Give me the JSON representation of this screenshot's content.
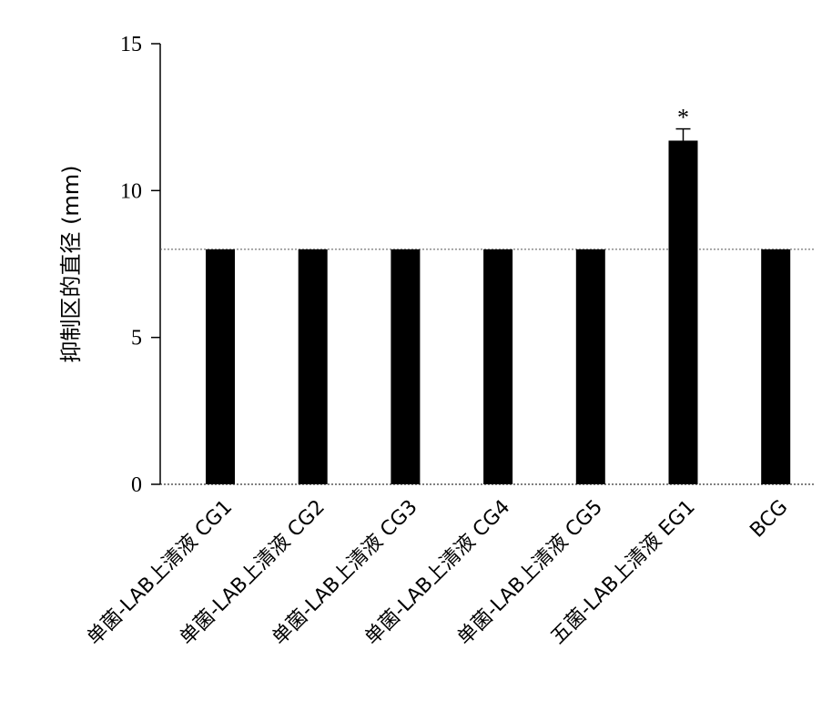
{
  "chart_data": {
    "type": "bar",
    "title": "",
    "xlabel": "",
    "ylabel": "抑制区的直径 (mm)",
    "ylim": [
      0,
      15
    ],
    "yticks": [
      0,
      5,
      10,
      15
    ],
    "categories": [
      "单菌-LAB上清液 CG1",
      "单菌-LAB上清液 CG2",
      "单菌-LAB上清液 CG3",
      "单菌-LAB上清液 CG4",
      "单菌-LAB上清液 CG5",
      "五菌-LAB上清液 EG1",
      "BCG"
    ],
    "values": [
      8,
      8,
      8,
      8,
      8,
      11.7,
      8
    ],
    "errors": [
      0,
      0,
      0,
      0,
      0,
      0.4,
      0
    ],
    "annotations": [
      "",
      "",
      "",
      "",
      "",
      "*",
      ""
    ],
    "reference_line": 8,
    "bar_color": "#000000",
    "grid": false,
    "legend": "none"
  }
}
